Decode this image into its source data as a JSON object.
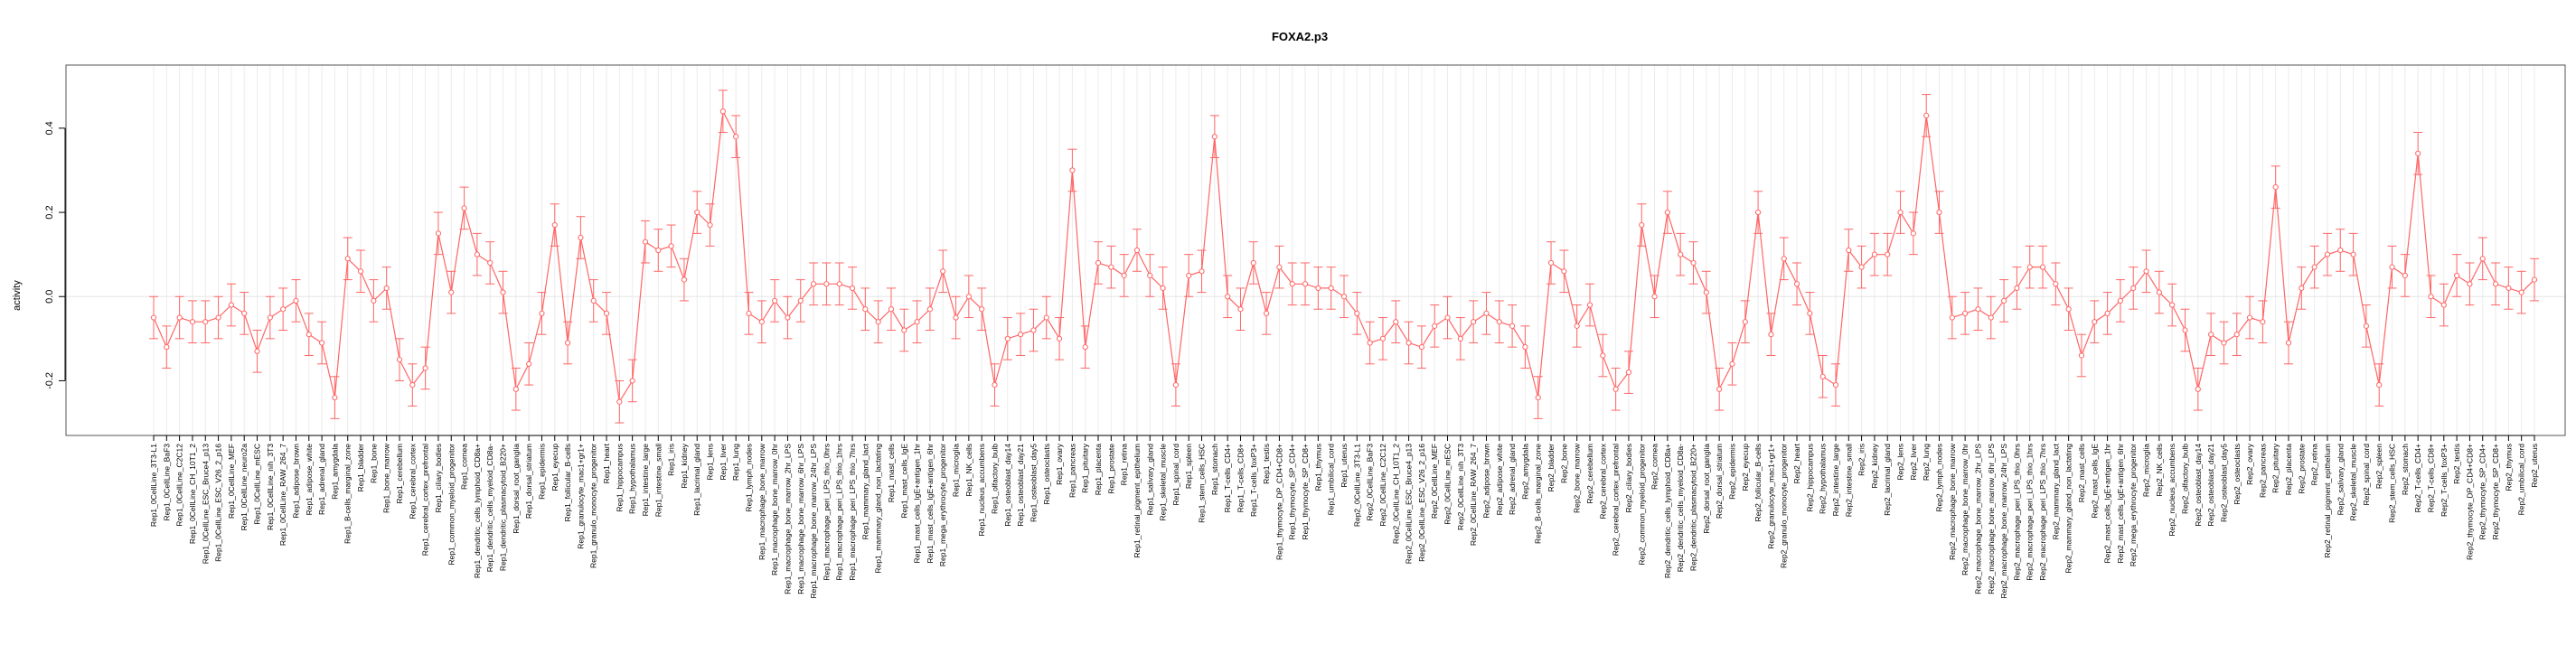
{
  "chart_data": {
    "type": "line",
    "title": "FOXA2.p3",
    "xlabel": "",
    "ylabel": "activity",
    "ylim": [
      -0.33,
      0.55
    ],
    "yticks": [
      -0.2,
      0.0,
      0.2,
      0.4
    ],
    "ytick_labels": [
      "-0.2",
      "0.0",
      "0.2",
      "0.4"
    ],
    "grid": true,
    "color": "#ff6666",
    "errorbar_halfwidth": 0.05,
    "categories": [
      "Rep1_0CellLine_3T3-L1",
      "Rep1_0CellLine_BaF3",
      "Rep1_0CellLine_C2C12",
      "Rep1_0CellLine_CH_10T1_2",
      "Rep1_0CellLine_ESC_Bruce4_p13",
      "Rep1_0CellLine_ESC_V26_2_p16",
      "Rep1_0CellLine_MEF",
      "Rep1_0CellLine_neuro2a",
      "Rep1_0CellLine_mESC",
      "Rep1_0CellLine_nih_3T3",
      "Rep1_0CellLine_RAW_264_7",
      "Rep1_adipose_brown",
      "Rep1_adipose_white",
      "Rep1_adrenal_gland",
      "Rep1_amygdala",
      "Rep1_B-cells_marginal_zone",
      "Rep1_bladder",
      "Rep1_bone",
      "Rep1_bone_marrow",
      "Rep1_cerebellum",
      "Rep1_cerebral_cortex",
      "Rep1_cerebral_cortex_prefrontal",
      "Rep1_ciliary_bodies",
      "Rep1_common_myeloid_progenitor",
      "Rep1_cornea",
      "Rep1_dendritic_cells_lymphoid_CD8a+",
      "Rep1_dendritic_cells_myeloid_CD8a-",
      "Rep1_dendritic_plasmacytoid_B220+",
      "Rep1_dorsal_root_ganglia",
      "Rep1_dorsal_striatum",
      "Rep1_epidermis",
      "Rep1_eyecup",
      "Rep1_follicular_B-cells",
      "Rep1_granulocyte_mac1+gr1+",
      "Rep1_granulo_monocyte_progenitor",
      "Rep1_heart",
      "Rep1_hippocampus",
      "Rep1_hypothalamus",
      "Rep1_intestine_large",
      "Rep1_intestine_small",
      "Rep1_iris",
      "Rep1_kidney",
      "Rep1_lacrimal_gland",
      "Rep1_lens",
      "Rep1_liver",
      "Rep1_lung",
      "Rep1_lymph_nodes",
      "Rep1_macrophage_bone_marrow",
      "Rep1_macrophage_bone_marrow_0hr",
      "Rep1_macrophage_bone_marrow_2hr_LPS",
      "Rep1_macrophage_bone_marrow_6hr_LPS",
      "Rep1_macrophage_bone_marrow_24hr_LPS",
      "Rep1_macrophage_peri_LPS_thio_0hrs",
      "Rep1_macrophage_peri_LPS_thio_1hrs",
      "Rep1_macrophage_peri_LPS_thio_7hrs",
      "Rep1_mammary_gland_lact",
      "Rep1_mammary_gland_non_lactating",
      "Rep1_mast_cells",
      "Rep1_mast_cells_IgE",
      "Rep1_mast_cells_IgE+antigen_1hr",
      "Rep1_mast_cells_IgE+antigen_6hr",
      "Rep1_mega_erythrocyte_progenitor",
      "Rep1_microglia",
      "Rep1_NK_cells",
      "Rep1_nucleus_accumbens",
      "Rep1_olfactory_bulb",
      "Rep1_osteoblast_day14",
      "Rep1_osteoblast_day21",
      "Rep1_osteoblast_day5",
      "Rep1_osteoclasts",
      "Rep1_ovary",
      "Rep1_pancreas",
      "Rep1_pituitary",
      "Rep1_placenta",
      "Rep1_prostate",
      "Rep1_retina",
      "Rep1_retinal_pigment_epithelium",
      "Rep1_salivary_gland",
      "Rep1_skeletal_muscle",
      "Rep1_spinal_cord",
      "Rep1_spleen",
      "Rep1_stem_cells_HSC",
      "Rep1_stomach",
      "Rep1_T-cells_CD4+",
      "Rep1_T-cells_CD8+",
      "Rep1_T-cells_foxP3+",
      "Rep1_testis",
      "Rep1_thymocyte_DP_CD4+CD8+",
      "Rep1_thymocyte_SP_CD4+",
      "Rep1_thymocyte_SP_CD8+",
      "Rep1_thymus",
      "Rep1_umbilical_cord",
      "Rep1_uterus",
      "Rep2_0CellLine_3T3-L1",
      "Rep2_0CellLine_BaF3",
      "Rep2_0CellLine_C2C12",
      "Rep2_0CellLine_CH_10T1_2",
      "Rep2_0CellLine_ESC_Bruce4_p13",
      "Rep2_0CellLine_ESC_V26_2_p16",
      "Rep2_0CellLine_MEF",
      "Rep2_0CellLine_mESC",
      "Rep2_0CellLine_nih_3T3",
      "Rep2_0CellLine_RAW_264_7",
      "Rep2_adipose_brown",
      "Rep2_adipose_white",
      "Rep2_adrenal_gland",
      "Rep2_amygdala",
      "Rep2_B-cells_marginal_zone",
      "Rep2_bladder",
      "Rep2_bone",
      "Rep2_bone_marrow",
      "Rep2_cerebellum",
      "Rep2_cerebral_cortex",
      "Rep2_cerebral_cortex_prefrontal",
      "Rep2_ciliary_bodies",
      "Rep2_common_myeloid_progenitor",
      "Rep2_cornea",
      "Rep2_dendritic_cells_lymphoid_CD8a+",
      "Rep2_dendritic_cells_myeloid_CD8a-",
      "Rep2_dendritic_plasmacytoid_B220+",
      "Rep2_dorsal_root_ganglia",
      "Rep2_dorsal_striatum",
      "Rep2_epidermis",
      "Rep2_eyecup",
      "Rep2_follicular_B-cells",
      "Rep2_granulocyte_mac1+gr1+",
      "Rep2_granulo_monocyte_progenitor",
      "Rep2_heart",
      "Rep2_hippocampus",
      "Rep2_hypothalamus",
      "Rep2_intestine_large",
      "Rep2_intestine_small",
      "Rep2_iris",
      "Rep2_kidney",
      "Rep2_lacrimal_gland",
      "Rep2_lens",
      "Rep2_liver",
      "Rep2_lung",
      "Rep2_lymph_nodes",
      "Rep2_macrophage_bone_marrow",
      "Rep2_macrophage_bone_marrow_0hr",
      "Rep2_macrophage_bone_marrow_2hr_LPS",
      "Rep2_macrophage_bone_marrow_6hr_LPS",
      "Rep2_macrophage_bone_marrow_24hr_LPS",
      "Rep2_macrophage_peri_LPS_thio_0hrs",
      "Rep2_macrophage_peri_LPS_thio_1hrs",
      "Rep2_macrophage_peri_LPS_thio_7hrs",
      "Rep2_mammary_gland_lact",
      "Rep2_mammary_gland_non_lactating",
      "Rep2_mast_cells",
      "Rep2_mast_cells_IgE",
      "Rep2_mast_cells_IgE+antigen_1hr",
      "Rep2_mast_cells_IgE+antigen_6hr",
      "Rep2_mega_erythrocyte_progenitor",
      "Rep2_microglia",
      "Rep2_NK_cells",
      "Rep2_nucleus_accumbens",
      "Rep2_olfactory_bulb",
      "Rep2_osteoblast_day14",
      "Rep2_osteoblast_day21",
      "Rep2_osteoblast_day5",
      "Rep2_osteoclasts",
      "Rep2_ovary",
      "Rep2_pancreas",
      "Rep2_pituitary",
      "Rep2_placenta",
      "Rep2_prostate",
      "Rep2_retina",
      "Rep2_retinal_pigment_epithelium",
      "Rep2_salivary_gland",
      "Rep2_skeletal_muscle",
      "Rep2_spinal_cord",
      "Rep2_spleen",
      "Rep2_stem_cells_HSC",
      "Rep2_stomach",
      "Rep2_T-cells_CD4+",
      "Rep2_T-cells_CD8+",
      "Rep2_T-cells_foxP3+",
      "Rep2_testis",
      "Rep2_thymocyte_DP_CD4+CD8+",
      "Rep2_thymocyte_SP_CD4+",
      "Rep2_thymocyte_SP_CD8+",
      "Rep2_thymus",
      "Rep2_umbilical_cord",
      "Rep2_uterus"
    ],
    "values": [
      -0.05,
      -0.12,
      -0.05,
      -0.06,
      -0.06,
      -0.05,
      -0.02,
      -0.04,
      -0.13,
      -0.05,
      -0.03,
      -0.01,
      -0.09,
      -0.11,
      -0.24,
      0.09,
      0.06,
      -0.01,
      0.02,
      -0.15,
      -0.21,
      -0.17,
      0.15,
      0.01,
      0.21,
      0.1,
      0.08,
      0.01,
      -0.22,
      -0.16,
      -0.04,
      0.17,
      -0.11,
      0.14,
      -0.01,
      -0.04,
      -0.25,
      -0.2,
      0.13,
      0.11,
      0.12,
      0.04,
      0.2,
      0.17,
      0.44,
      0.38,
      -0.04,
      -0.06,
      -0.01,
      -0.05,
      -0.01,
      0.03,
      0.03,
      0.03,
      0.02,
      -0.03,
      -0.06,
      -0.03,
      -0.08,
      -0.06,
      -0.03,
      0.06,
      -0.05,
      0.0,
      -0.03,
      -0.21,
      -0.1,
      -0.09,
      -0.08,
      -0.05,
      -0.1,
      0.3,
      -0.12,
      0.08,
      0.07,
      0.05,
      0.11,
      0.05,
      0.02,
      -0.21,
      0.05,
      0.06,
      0.38,
      0.0,
      -0.03,
      0.08,
      -0.04,
      0.07,
      0.03,
      0.03,
      0.02,
      0.02,
      0.0,
      -0.04,
      -0.11,
      -0.1,
      -0.06,
      -0.11,
      -0.12,
      -0.07,
      -0.05,
      -0.1,
      -0.06,
      -0.04,
      -0.06,
      -0.07,
      -0.12,
      -0.24,
      0.08,
      0.06,
      -0.07,
      -0.02,
      -0.14,
      -0.22,
      -0.18,
      0.17,
      0.0,
      0.2,
      0.1,
      0.08,
      0.01,
      -0.22,
      -0.16,
      -0.06,
      0.2,
      -0.09,
      0.09,
      0.03,
      -0.04,
      -0.19,
      -0.21,
      0.11,
      0.07,
      0.1,
      0.1,
      0.2,
      0.15,
      0.43,
      0.2,
      -0.05,
      -0.04,
      -0.03,
      -0.05,
      -0.01,
      0.02,
      0.07,
      0.07,
      0.03,
      -0.03,
      -0.14,
      -0.06,
      -0.04,
      -0.01,
      0.02,
      0.06,
      0.01,
      -0.02,
      -0.08,
      -0.22,
      -0.09,
      -0.11,
      -0.09,
      -0.05,
      -0.06,
      0.26,
      -0.11,
      0.02,
      0.07,
      0.1,
      0.11,
      0.1,
      -0.07,
      -0.21,
      0.07,
      0.05,
      0.34,
      0.0,
      -0.02,
      0.05,
      0.03,
      0.09,
      0.03,
      0.02,
      0.01,
      0.04
    ]
  }
}
